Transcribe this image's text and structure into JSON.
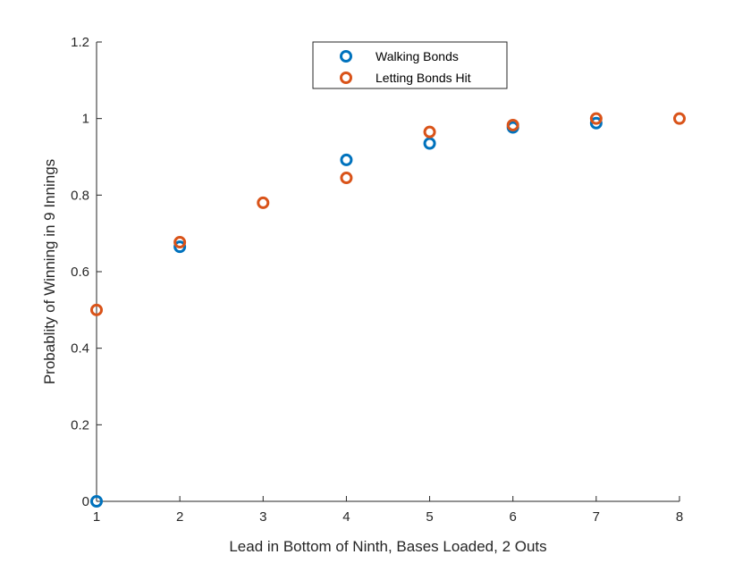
{
  "chart_data": {
    "type": "scatter",
    "title": "",
    "xlabel": "Lead in Bottom of Ninth, Bases Loaded, 2 Outs",
    "ylabel": "Probablity of Winning in 9 Innings",
    "xlim": [
      1,
      8
    ],
    "ylim": [
      0,
      1.2
    ],
    "xticks": [
      "1",
      "2",
      "3",
      "4",
      "5",
      "6",
      "7",
      "8"
    ],
    "yticks": [
      "0",
      "0.2",
      "0.4",
      "0.6",
      "0.8",
      "1",
      "1.2"
    ],
    "grid": false,
    "legend_position": "top-center",
    "series": [
      {
        "name": "Walking Bonds",
        "color": "#0072BD",
        "marker": "circle-open",
        "points": [
          [
            1,
            0.0
          ],
          [
            2,
            0.665
          ],
          [
            4,
            0.892
          ],
          [
            5,
            0.935
          ],
          [
            6,
            0.977
          ],
          [
            7,
            0.988
          ]
        ]
      },
      {
        "name": "Letting Bonds Hit",
        "color": "#D95319",
        "marker": "circle-open",
        "points": [
          [
            1,
            0.5
          ],
          [
            2,
            0.677
          ],
          [
            3,
            0.78
          ],
          [
            4,
            0.845
          ],
          [
            5,
            0.965
          ],
          [
            6,
            0.983
          ],
          [
            7,
            1.0
          ],
          [
            8,
            1.0
          ]
        ]
      }
    ]
  }
}
